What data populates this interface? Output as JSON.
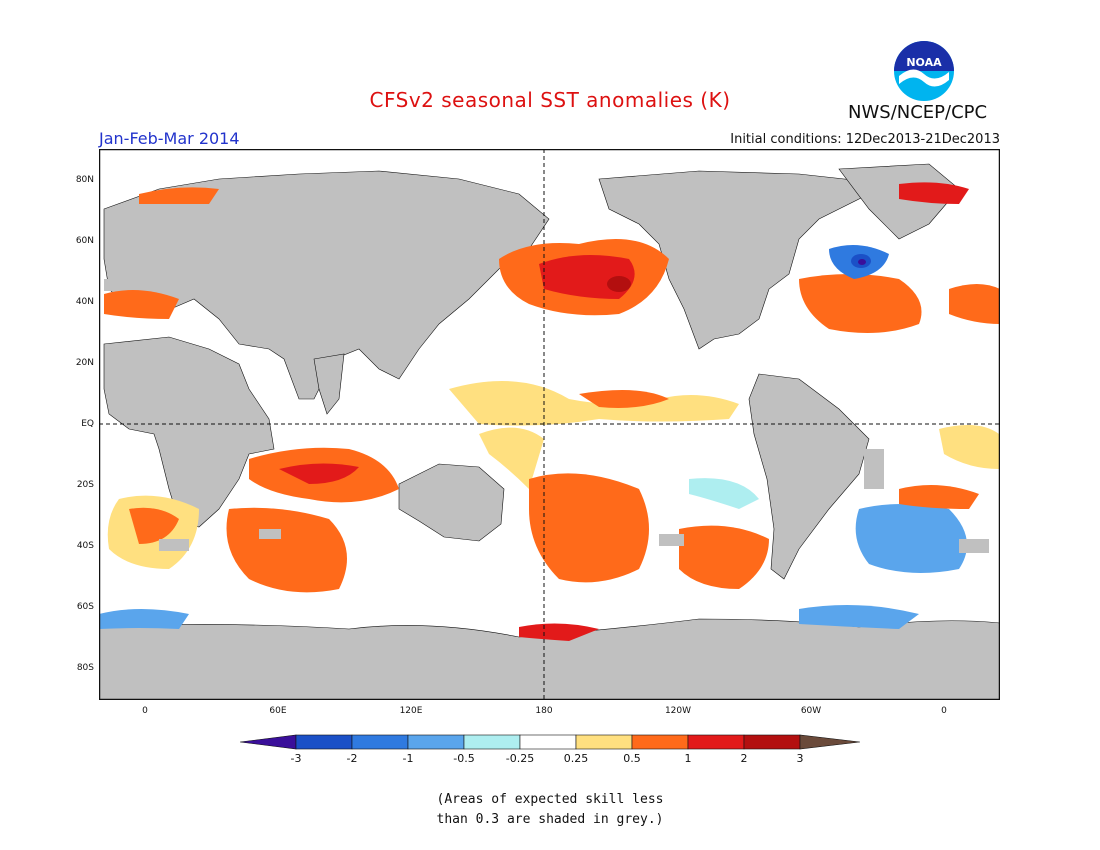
{
  "title": "CFSv2 seasonal SST anomalies (K)",
  "period": "Jan-Feb-Mar 2014",
  "initial_conditions": "Initial conditions: 12Dec2013-21Dec2013",
  "agency": "NWS/NCEP/CPC",
  "logo_text": "NOAA",
  "lat_ticks": [
    "80N",
    "60N",
    "40N",
    "20N",
    "EQ",
    "20S",
    "40S",
    "60S",
    "80S"
  ],
  "lon_ticks": [
    "0",
    "60E",
    "120E",
    "180",
    "120W",
    "60W",
    "0"
  ],
  "colorbar": {
    "labels": [
      "-3",
      "-2",
      "-1",
      "-0.5",
      "-0.25",
      "0.25",
      "0.5",
      "1",
      "2",
      "3"
    ],
    "colors": [
      "#1b50c7",
      "#2f7ae0",
      "#5aa5ec",
      "#aeeef0",
      "#ffffff",
      "#ffe080",
      "#ff6a1a",
      "#e21a1a",
      "#b30f0f"
    ],
    "low_extend_color": "#3a0f9a",
    "high_extend_color": "#6a4a3a"
  },
  "note_line1": "(Areas of expected skill less",
  "note_line2": "than 0.3 are shaded in grey.)"
}
